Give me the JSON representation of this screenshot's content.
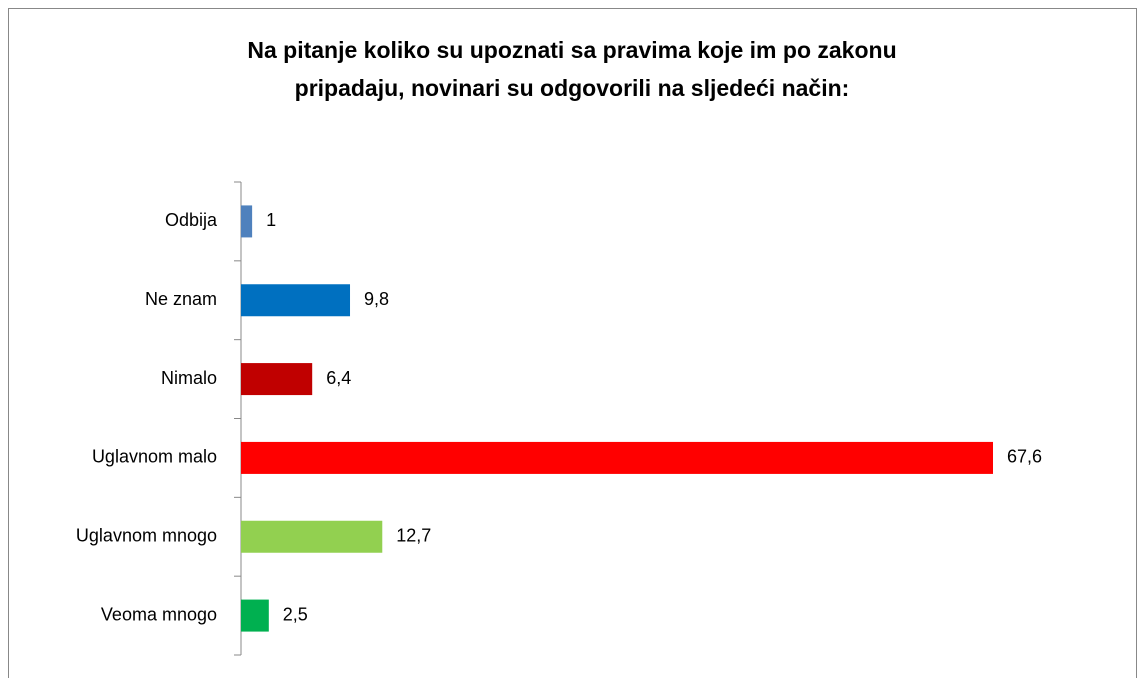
{
  "chart_data": {
    "type": "bar",
    "orientation": "horizontal",
    "title": [
      "Na pitanje koliko su upoznati sa pravima koje im po zakonu",
      "pripadaju, novinari su odgovorili na sljedeći način:"
    ],
    "categories": [
      "Odbija",
      "Ne znam",
      "Nimalo",
      "Uglavnom malo",
      "Uglavnom mnogo",
      "Veoma mnogo"
    ],
    "values": [
      1,
      9.8,
      6.4,
      67.6,
      12.7,
      2.5
    ],
    "value_labels": [
      "1",
      "9,8",
      "6,4",
      "67,6",
      "12,7",
      "2,5"
    ],
    "colors": [
      "#4f81bd",
      "#0070c0",
      "#c00000",
      "#ff0000",
      "#92d050",
      "#00b050"
    ]
  }
}
